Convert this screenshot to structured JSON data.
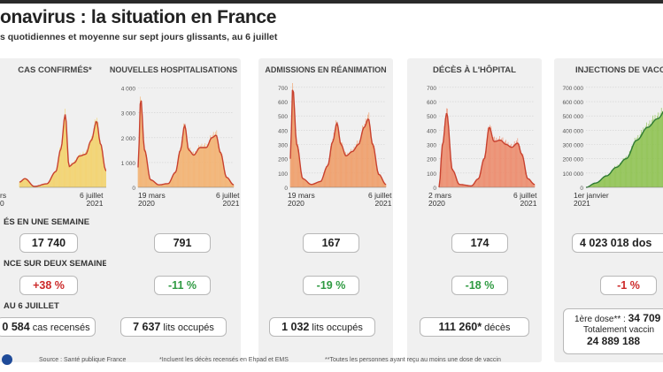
{
  "title": "onavirus : la situation en France",
  "subtitle": "s quotidiennes et moyenne sur sept jours glissants, au 6 juillet",
  "panels": [
    {
      "title": "CAS CONFIRMÉS*",
      "x_start": "rs",
      "x_start_year": "0",
      "x_end": "6 juillet",
      "x_end_year": "2021",
      "week_label": "ÉS EN UNE SEMAINE",
      "week_value": "17 740",
      "trend_label": "NCE SUR DEUX SEMAINES",
      "trend_value": "+38 %",
      "total_label": "AU 6 JUILLET",
      "total_value": "0 584",
      "total_suffix": " cas recensés"
    },
    {
      "title": "NOUVELLES HOSPITALISATIONS",
      "x_start": "19 mars",
      "x_start_year": "2020",
      "x_end": "6 juillet",
      "x_end_year": "2021",
      "week_value": "791",
      "trend_value": "-11 %",
      "total_value": "7 637",
      "total_suffix": " lits occupés"
    },
    {
      "title": "ADMISSIONS EN RÉANIMATION",
      "x_start": "19 mars",
      "x_start_year": "2020",
      "x_end": "6 juillet",
      "x_end_year": "2021",
      "week_value": "167",
      "trend_value": "-19 %",
      "total_value": "1 032",
      "total_suffix": " lits occupés"
    },
    {
      "title": "DÉCÈS À L'HÔPITAL",
      "x_start": "2 mars",
      "x_start_year": "2020",
      "x_end": "6 juillet",
      "x_end_year": "2021",
      "week_value": "174",
      "trend_value": "-18 %",
      "total_value": "111 260*",
      "total_suffix": " décès"
    },
    {
      "title": "INJECTIONS DE VACC",
      "x_start": "1er janvier",
      "x_start_year": "2021",
      "week_value": "4 023 018 dos",
      "trend_value": "-1 %",
      "dose_label": "1ère dose** : ",
      "dose_value": "34 709",
      "vacc_label": "Totalement vaccin",
      "vacc_value": "24 889 188"
    }
  ],
  "footer": {
    "source": "Source : Santé publique France",
    "note1": "*Incluent les décès recensés en Ehpad et EMS",
    "note2": "**Toutes les personnes ayant reçu au moins une dose de vaccin"
  },
  "colors": {
    "cases": "#f3d26a",
    "hosp": "#f3b06e",
    "rea": "#ef9c67",
    "deaths": "#ec8a6a",
    "vacc": "#8dc24f",
    "avg": "#c8412f",
    "vacc_avg": "#2f7a34"
  },
  "chart_data": [
    {
      "type": "area",
      "name": "CAS CONFIRMÉS*",
      "x": [
        "2020-03-19",
        "2020-04-15",
        "2020-06-01",
        "2020-08-01",
        "2020-09-15",
        "2020-10-10",
        "2020-11-01",
        "2020-11-20",
        "2020-12-15",
        "2021-01-10",
        "2021-02-10",
        "2021-03-10",
        "2021-04-05",
        "2021-04-25",
        "2021-05-20",
        "2021-06-15",
        "2021-07-06"
      ],
      "values": [
        3000,
        5000,
        500,
        2000,
        9000,
        22000,
        42000,
        12000,
        14000,
        18000,
        19000,
        27000,
        38000,
        25000,
        10000,
        2500,
        3000
      ],
      "ylim": [
        0,
        60000
      ]
    },
    {
      "type": "area",
      "name": "NOUVELLES HOSPITALISATIONS",
      "x": [
        "2020-03-19",
        "2020-04-01",
        "2020-04-20",
        "2020-05-20",
        "2020-07-01",
        "2020-08-15",
        "2020-09-20",
        "2020-10-15",
        "2020-11-05",
        "2020-11-25",
        "2020-12-20",
        "2021-01-20",
        "2021-02-20",
        "2021-03-20",
        "2021-04-10",
        "2021-05-01",
        "2021-06-01",
        "2021-07-06"
      ],
      "values": [
        800,
        3600,
        1500,
        300,
        100,
        150,
        600,
        1500,
        2500,
        1500,
        1300,
        1600,
        1600,
        2000,
        2100,
        1400,
        400,
        100
      ],
      "yticks": [
        0,
        1000,
        2000,
        3000,
        4000
      ],
      "ylim": [
        0,
        4200
      ]
    },
    {
      "type": "area",
      "name": "ADMISSIONS EN RÉANIMATION",
      "x": [
        "2020-03-19",
        "2020-03-31",
        "2020-04-20",
        "2020-05-20",
        "2020-07-01",
        "2020-08-15",
        "2020-09-20",
        "2020-10-15",
        "2020-11-05",
        "2020-11-25",
        "2020-12-20",
        "2021-01-20",
        "2021-02-20",
        "2021-03-20",
        "2021-04-10",
        "2021-05-01",
        "2021-06-01",
        "2021-07-06"
      ],
      "values": [
        200,
        700,
        300,
        60,
        20,
        40,
        150,
        320,
        450,
        300,
        220,
        250,
        300,
        420,
        480,
        300,
        90,
        20
      ],
      "yticks": [
        0,
        100,
        200,
        300,
        400,
        500,
        600,
        700
      ],
      "ylim": [
        0,
        730
      ]
    },
    {
      "type": "area",
      "name": "DÉCÈS À L'HÔPITAL",
      "x": [
        "2020-03-02",
        "2020-03-20",
        "2020-04-10",
        "2020-05-10",
        "2020-06-15",
        "2020-08-15",
        "2020-09-20",
        "2020-10-20",
        "2020-11-15",
        "2020-12-10",
        "2021-01-10",
        "2021-02-10",
        "2021-03-10",
        "2021-04-10",
        "2021-05-01",
        "2021-06-01",
        "2021-07-06"
      ],
      "values": [
        0,
        300,
        520,
        120,
        20,
        10,
        60,
        200,
        420,
        320,
        330,
        300,
        280,
        310,
        230,
        60,
        20
      ],
      "yticks": [
        0,
        100,
        200,
        300,
        400,
        500,
        600,
        700
      ],
      "ylim": [
        0,
        730
      ]
    },
    {
      "type": "area",
      "name": "INJECTIONS DE VACC",
      "x": [
        "2021-01-01",
        "2021-01-20",
        "2021-02-10",
        "2021-03-01",
        "2021-03-20",
        "2021-04-10",
        "2021-05-01",
        "2021-05-20",
        "2021-06-10",
        "2021-07-06"
      ],
      "values": [
        0,
        30000,
        80000,
        140000,
        200000,
        330000,
        420000,
        480000,
        570000,
        620000
      ],
      "yticks": [
        0,
        100000,
        200000,
        300000,
        400000,
        500000,
        600000,
        700000
      ],
      "ylim": [
        0,
        730000
      ]
    }
  ]
}
